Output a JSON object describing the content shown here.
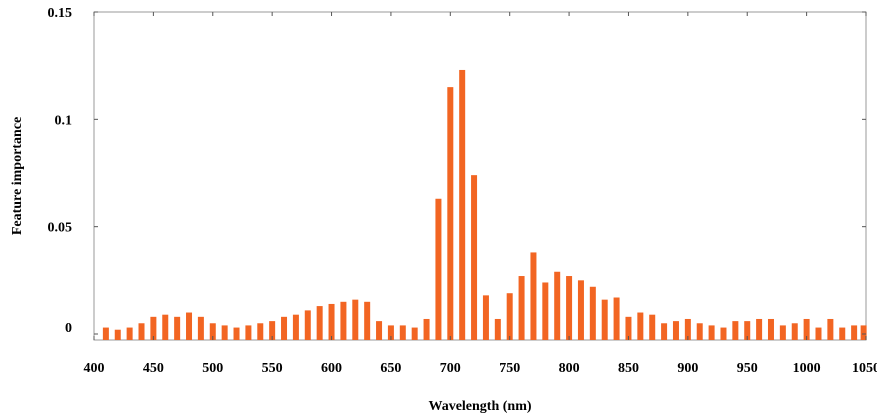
{
  "chart_data": {
    "type": "bar",
    "title": "",
    "xlabel": "Wavelength (nm)",
    "ylabel": "Feature importance",
    "xlim": [
      400,
      1050
    ],
    "ylim": [
      0,
      0.15
    ],
    "x_ticks": [
      400,
      450,
      500,
      550,
      600,
      650,
      700,
      750,
      800,
      850,
      900,
      950,
      1000,
      1050
    ],
    "x_tick_labels": [
      "400",
      "450",
      "500",
      "550",
      "600",
      "650",
      "700",
      "750",
      "800",
      "850",
      "900",
      "950",
      "1000",
      "1050"
    ],
    "y_ticks": [
      0,
      0.05,
      0.1,
      0.15
    ],
    "y_tick_labels": [
      "0",
      "0.05",
      "0.1",
      "0.15"
    ],
    "grid": false,
    "bar_color": "#f26522",
    "x": [
      410,
      420,
      430,
      440,
      450,
      460,
      470,
      480,
      490,
      500,
      510,
      520,
      530,
      540,
      550,
      560,
      570,
      580,
      590,
      600,
      610,
      620,
      630,
      640,
      650,
      660,
      670,
      680,
      690,
      700,
      710,
      720,
      730,
      740,
      750,
      760,
      770,
      780,
      790,
      800,
      810,
      820,
      830,
      840,
      850,
      860,
      870,
      880,
      890,
      900,
      910,
      920,
      930,
      940,
      950,
      960,
      970,
      980,
      990,
      1000,
      1010,
      1020,
      1030,
      1040,
      1048
    ],
    "values": [
      0.003,
      0.002,
      0.003,
      0.005,
      0.008,
      0.009,
      0.008,
      0.01,
      0.008,
      0.005,
      0.004,
      0.003,
      0.004,
      0.005,
      0.006,
      0.008,
      0.009,
      0.011,
      0.013,
      0.014,
      0.015,
      0.016,
      0.015,
      0.006,
      0.004,
      0.004,
      0.003,
      0.007,
      0.063,
      0.115,
      0.123,
      0.074,
      0.018,
      0.007,
      0.019,
      0.027,
      0.038,
      0.024,
      0.029,
      0.027,
      0.025,
      0.022,
      0.016,
      0.017,
      0.008,
      0.01,
      0.009,
      0.005,
      0.006,
      0.007,
      0.005,
      0.004,
      0.003,
      0.006,
      0.006,
      0.007,
      0.007,
      0.004,
      0.005,
      0.007,
      0.003,
      0.007,
      0.003,
      0.004,
      0.004
    ]
  }
}
